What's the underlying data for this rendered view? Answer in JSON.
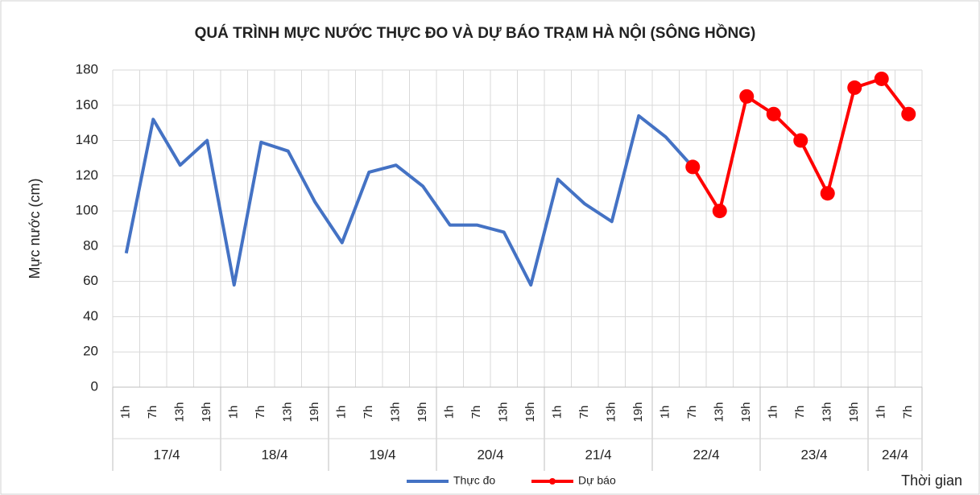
{
  "chart_data": {
    "type": "line",
    "title": "QUÁ TRÌNH MỰC NƯỚC THỰC ĐO VÀ DỰ BÁO TRẠM HÀ NỘI (SÔNG HỒNG)",
    "y_label": "Mực nước (cm)",
    "x_label": "Thời gian",
    "categories": [
      "1h",
      "7h",
      "13h",
      "19h",
      "1h",
      "7h",
      "13h",
      "19h",
      "1h",
      "7h",
      "13h",
      "19h",
      "1h",
      "7h",
      "13h",
      "19h",
      "1h",
      "7h",
      "13h",
      "19h",
      "1h",
      "7h",
      "13h",
      "19h",
      "1h",
      "7h",
      "13h",
      "19h",
      "1h",
      "7h"
    ],
    "groups": [
      {
        "label": "17/4",
        "span": 4
      },
      {
        "label": "18/4",
        "span": 4
      },
      {
        "label": "19/4",
        "span": 4
      },
      {
        "label": "20/4",
        "span": 4
      },
      {
        "label": "21/4",
        "span": 4
      },
      {
        "label": "22/4",
        "span": 4
      },
      {
        "label": "23/4",
        "span": 4
      },
      {
        "label": "24/4",
        "span": 2
      }
    ],
    "series": [
      {
        "name": "Thực đo",
        "color": "#4472c4",
        "marker": false,
        "values": [
          76,
          152,
          126,
          140,
          58,
          139,
          134,
          105,
          82,
          122,
          126,
          114,
          92,
          92,
          88,
          58,
          118,
          104,
          94,
          154,
          142,
          125,
          null,
          null,
          null,
          null,
          null,
          null,
          null,
          null
        ]
      },
      {
        "name": "Dự báo",
        "color": "#ff0000",
        "marker": true,
        "values": [
          null,
          null,
          null,
          null,
          null,
          null,
          null,
          null,
          null,
          null,
          null,
          null,
          null,
          null,
          null,
          null,
          null,
          null,
          null,
          null,
          null,
          125,
          100,
          165,
          155,
          140,
          110,
          170,
          175,
          155
        ]
      }
    ],
    "ylim": [
      0,
      180
    ],
    "yticks": [
      0,
      20,
      40,
      60,
      80,
      100,
      120,
      140,
      160,
      180
    ],
    "grid": true
  }
}
